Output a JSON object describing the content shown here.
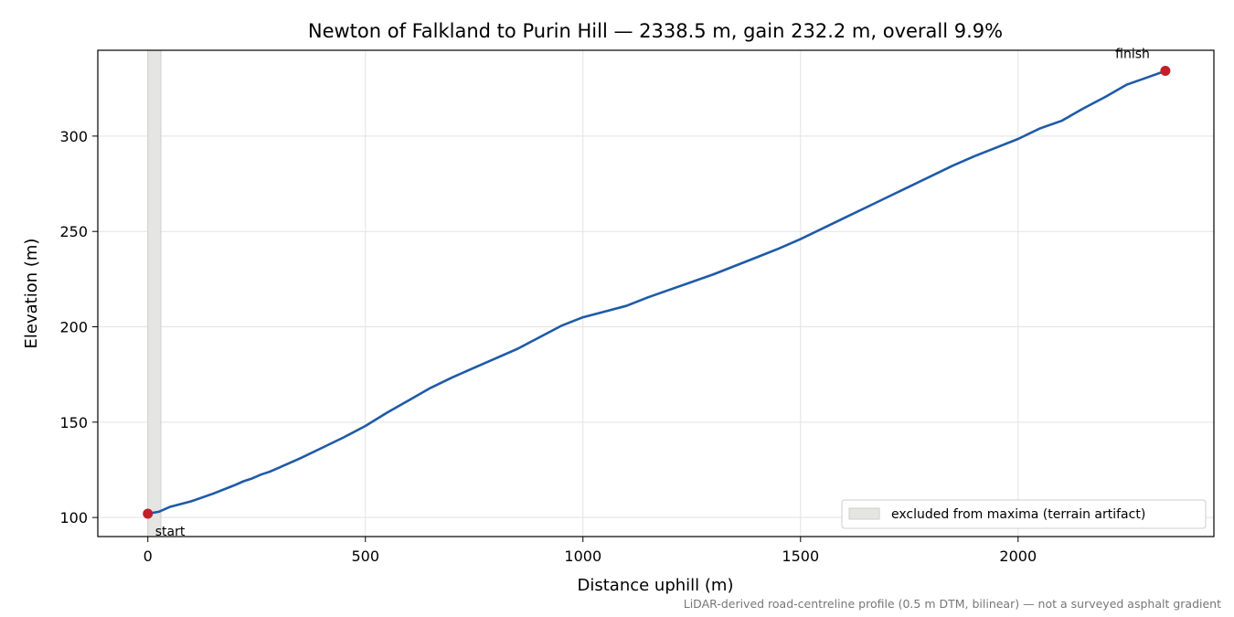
{
  "chart_data": {
    "type": "line",
    "title": "Newton of Falkland to Purin Hill — 2338.5 m, gain 232.2 m, overall 9.9%",
    "xlabel": "Distance uphill (m)",
    "ylabel": "Elevation (m)",
    "xlim": [
      -115,
      2450
    ],
    "ylim": [
      90,
      345
    ],
    "xticks": [
      0,
      500,
      1000,
      1500,
      2000
    ],
    "yticks": [
      100,
      150,
      200,
      250,
      300
    ],
    "grid": true,
    "series": [
      {
        "color": "#1f5aa8",
        "x": [
          0,
          25,
          50,
          100,
          150,
          200,
          220,
          240,
          260,
          280,
          300,
          350,
          400,
          450,
          500,
          550,
          600,
          650,
          700,
          750,
          800,
          850,
          900,
          950,
          1000,
          1050,
          1100,
          1150,
          1200,
          1250,
          1300,
          1350,
          1400,
          1450,
          1500,
          1550,
          1600,
          1650,
          1700,
          1750,
          1800,
          1850,
          1900,
          1950,
          2000,
          2050,
          2100,
          2150,
          2200,
          2250,
          2300,
          2338.5
        ],
        "y": [
          102,
          103,
          105.5,
          108.5,
          112.5,
          117,
          119,
          120.5,
          122.5,
          124,
          126,
          131,
          136.5,
          142,
          148,
          155,
          161.5,
          168,
          173.5,
          178.5,
          183.5,
          188.5,
          194.5,
          200.5,
          205,
          208,
          211,
          215.5,
          219.5,
          223.5,
          227.5,
          232,
          236.5,
          241,
          246,
          251.5,
          257,
          262.5,
          268,
          273.5,
          279,
          284.5,
          289.5,
          294,
          298.5,
          304,
          308,
          314.5,
          320.5,
          327,
          331,
          334.2
        ]
      }
    ],
    "excluded_region": [
      0,
      30
    ],
    "markers": [
      {
        "x": 0,
        "y": 102,
        "label": "start",
        "color": "#c0202a"
      },
      {
        "x": 2338.5,
        "y": 334.2,
        "label": "finish",
        "color": "#c0202a"
      }
    ],
    "legend": {
      "placement": "lower-right",
      "entries": [
        {
          "label": "excluded from maxima (terrain artifact)",
          "color": "#e5e5e3"
        }
      ]
    },
    "footnote": "LiDAR-derived road-centreline profile (0.5 m DTM, bilinear) — not a surveyed asphalt gradient"
  }
}
